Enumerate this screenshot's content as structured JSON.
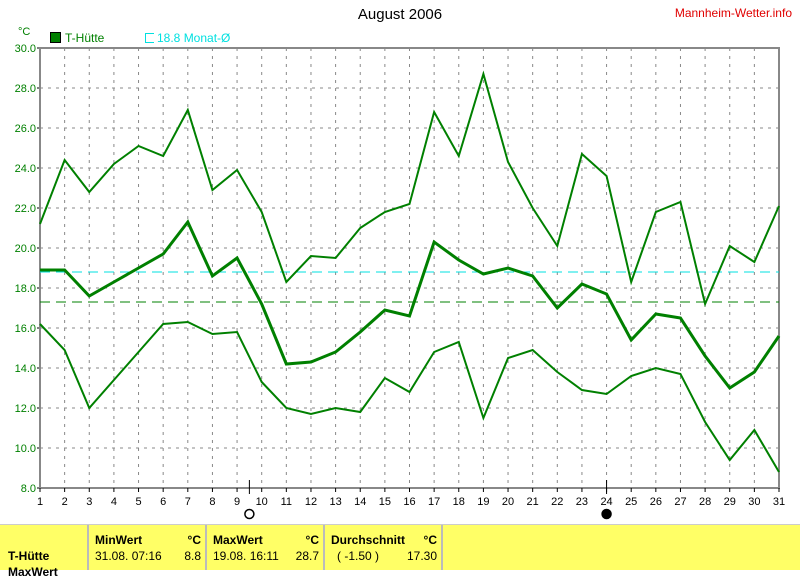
{
  "header": {
    "title": "August 2006",
    "site": "Mannheim-Wetter.info"
  },
  "legend": {
    "series": "T-Hütte",
    "mean": "18.8 Monat-Ø"
  },
  "chart_data": {
    "type": "line",
    "title": "August 2006",
    "ylabel": "°C",
    "ylim": [
      8,
      30
    ],
    "xlim": [
      1,
      31
    ],
    "grid": true,
    "yticks": [
      "8.0",
      "10.0",
      "12.0",
      "14.0",
      "16.0",
      "18.0",
      "20.0",
      "22.0",
      "24.0",
      "26.0",
      "28.0",
      "30.0"
    ],
    "x": [
      1,
      2,
      3,
      4,
      5,
      6,
      7,
      8,
      9,
      10,
      11,
      12,
      13,
      14,
      15,
      16,
      17,
      18,
      19,
      20,
      21,
      22,
      23,
      24,
      25,
      26,
      27,
      28,
      29,
      30,
      31
    ],
    "series": [
      {
        "role": "max",
        "values": [
          21.2,
          24.4,
          22.8,
          24.2,
          25.1,
          24.6,
          26.9,
          22.9,
          23.9,
          21.8,
          18.3,
          19.6,
          19.5,
          21.0,
          21.8,
          22.2,
          26.8,
          24.6,
          28.7,
          24.3,
          22.0,
          20.1,
          24.7,
          23.6,
          18.3,
          21.8,
          22.3,
          17.2,
          20.1,
          19.3,
          22.1
        ]
      },
      {
        "role": "mean",
        "values": [
          18.9,
          18.9,
          17.6,
          18.3,
          19.0,
          19.7,
          21.3,
          18.6,
          19.5,
          17.2,
          14.2,
          14.3,
          14.8,
          15.8,
          16.9,
          16.6,
          20.3,
          19.4,
          18.7,
          19.0,
          18.6,
          17.0,
          18.2,
          17.7,
          15.4,
          16.7,
          16.5,
          14.6,
          13.0,
          13.8,
          15.6
        ]
      },
      {
        "role": "min",
        "values": [
          16.2,
          14.9,
          12.0,
          13.4,
          14.8,
          16.2,
          16.3,
          15.7,
          15.8,
          13.3,
          12.0,
          11.7,
          12.0,
          11.8,
          13.5,
          12.8,
          14.8,
          15.3,
          11.5,
          14.5,
          14.9,
          13.8,
          12.9,
          12.7,
          13.6,
          14.0,
          13.7,
          11.3,
          9.4,
          10.9,
          8.8
        ]
      }
    ],
    "reference_lines": [
      {
        "value": 18.8,
        "color": "#00e0e0",
        "label": "Monat-Ø"
      },
      {
        "value": 17.3,
        "color": "#008000"
      }
    ],
    "moon_phases": [
      {
        "day": 9.5,
        "phase": "full"
      },
      {
        "day": 24,
        "phase": "new"
      }
    ],
    "colors": {
      "series": "#008000",
      "axis_text": "#008000"
    }
  },
  "stats": {
    "row_label": "T-Hütte",
    "row2_label": "MaxWert",
    "min": {
      "header": "MinWert",
      "unit": "°C",
      "date": "31.08.  07:16",
      "value": "8.8"
    },
    "max": {
      "header": "MaxWert",
      "unit": "°C",
      "date": "19.08.  16:11",
      "value": "28.7"
    },
    "avg": {
      "header": "Durchschnitt",
      "unit": "°C",
      "dev": "( -1.50 )",
      "value": "17.30"
    }
  }
}
